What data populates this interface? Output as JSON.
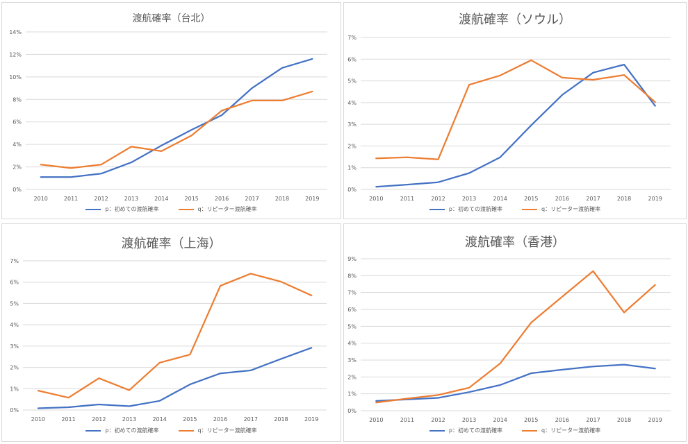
{
  "legend": {
    "p": "p：初めての渡航確率",
    "q": "q：リピーター渡航確率"
  },
  "colors": {
    "p": "#4472c4",
    "q": "#ed7d31",
    "grid": "#d9d9d9",
    "text": "#595959"
  },
  "chart_data": [
    {
      "type": "line",
      "title": "渡航確率（台北）",
      "x": [
        "2010",
        "2011",
        "2012",
        "2013",
        "2014",
        "2015",
        "2016",
        "2017",
        "2018",
        "2019"
      ],
      "ylim": [
        0,
        14
      ],
      "yticks": [
        0,
        2,
        4,
        6,
        8,
        10,
        12,
        14
      ],
      "series": [
        {
          "key": "p",
          "name": "p：初めての渡航確率",
          "values": [
            1.1,
            1.1,
            1.4,
            2.4,
            3.9,
            5.3,
            6.6,
            9.0,
            10.8,
            11.6
          ]
        },
        {
          "key": "q",
          "name": "q：リピーター渡航確率",
          "values": [
            2.2,
            1.9,
            2.2,
            3.8,
            3.4,
            4.8,
            7.0,
            7.9,
            7.9,
            8.7
          ]
        }
      ],
      "legend_position": "bottom",
      "grid": true
    },
    {
      "type": "line",
      "title": "渡航確率（ソウル）",
      "x": [
        "2010",
        "2011",
        "2012",
        "2013",
        "2014",
        "2015",
        "2016",
        "2017",
        "2018",
        "2019"
      ],
      "ylim": [
        0,
        7
      ],
      "yticks": [
        0,
        1,
        2,
        3,
        4,
        5,
        6,
        7
      ],
      "series": [
        {
          "key": "p",
          "name": "p：初めての渡航確率",
          "values": [
            0.12,
            0.22,
            0.33,
            0.75,
            1.48,
            2.95,
            4.35,
            5.38,
            5.75,
            3.85
          ]
        },
        {
          "key": "q",
          "name": "q：リピーター渡航確率",
          "values": [
            1.43,
            1.48,
            1.38,
            4.82,
            5.25,
            5.95,
            5.15,
            5.05,
            5.27,
            4.02
          ]
        }
      ],
      "legend_position": "bottom",
      "grid": true
    },
    {
      "type": "line",
      "title": "渡航確率（上海）",
      "x": [
        "2010",
        "2011",
        "2012",
        "2013",
        "2014",
        "2015",
        "2016",
        "2017",
        "2018",
        "2019"
      ],
      "ylim": [
        0,
        7
      ],
      "yticks": [
        0,
        1,
        2,
        3,
        4,
        5,
        6,
        7
      ],
      "series": [
        {
          "key": "p",
          "name": "p：初めての渡航確率",
          "values": [
            0.08,
            0.13,
            0.26,
            0.18,
            0.43,
            1.2,
            1.72,
            1.86,
            2.4,
            2.92
          ]
        },
        {
          "key": "q",
          "name": "q：リピーター渡航確率",
          "values": [
            0.91,
            0.58,
            1.49,
            0.93,
            2.22,
            2.6,
            5.83,
            6.4,
            6.02,
            5.38
          ]
        }
      ],
      "legend_position": "bottom",
      "grid": true
    },
    {
      "type": "line",
      "title": "渡航確率（香港）",
      "x": [
        "2010",
        "2011",
        "2012",
        "2013",
        "2014",
        "2015",
        "2016",
        "2017",
        "2018",
        "2019"
      ],
      "ylim": [
        0,
        9
      ],
      "yticks": [
        0,
        1,
        2,
        3,
        4,
        5,
        6,
        7,
        8,
        9
      ],
      "series": [
        {
          "key": "p",
          "name": "p：初めての渡航確率",
          "values": [
            0.58,
            0.67,
            0.76,
            1.1,
            1.52,
            2.22,
            2.43,
            2.62,
            2.73,
            2.5
          ]
        },
        {
          "key": "q",
          "name": "q：リピーター渡航確率",
          "values": [
            0.48,
            0.72,
            0.93,
            1.36,
            2.8,
            5.22,
            6.75,
            8.27,
            5.82,
            7.45
          ]
        }
      ],
      "legend_position": "bottom",
      "grid": true
    }
  ]
}
